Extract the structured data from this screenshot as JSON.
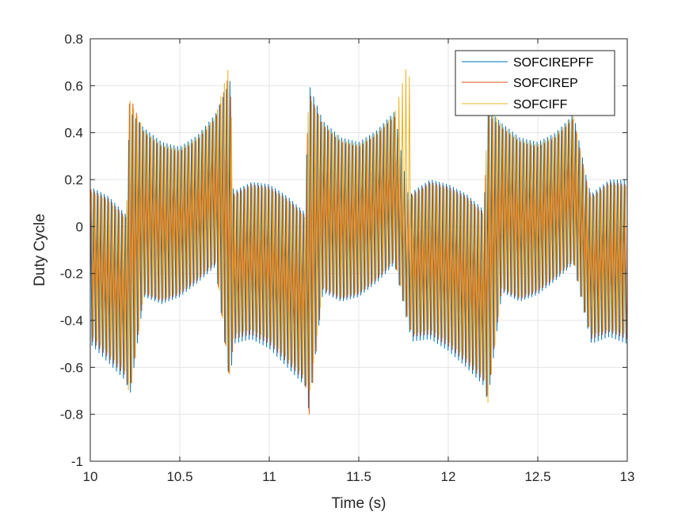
{
  "chart_data": {
    "type": "line",
    "title": "",
    "xlabel": "Time (s)",
    "ylabel": "Duty Cycle",
    "xlim": [
      10,
      13
    ],
    "ylim": [
      -1,
      0.8
    ],
    "xticks": [
      10,
      10.5,
      11,
      11.5,
      12,
      12.5,
      13
    ],
    "xtick_labels": [
      "10",
      "10.5",
      "11",
      "11.5",
      "12",
      "12.5",
      "13"
    ],
    "yticks": [
      -1,
      -0.8,
      -0.6,
      -0.4,
      -0.2,
      0,
      0.2,
      0.4,
      0.6,
      0.8
    ],
    "ytick_labels": [
      "-1",
      "-0.8",
      "-0.6",
      "-0.4",
      "-0.2",
      "0",
      "0.2",
      "0.4",
      "0.6",
      "0.8"
    ],
    "grid": true,
    "legend_position": "top-right",
    "series": [
      {
        "name": "SOFCIREPFF",
        "color": "#0072BD",
        "x": [
          10.0,
          10.1,
          10.2,
          10.22,
          10.3,
          10.4,
          10.5,
          10.6,
          10.7,
          10.78,
          10.8,
          10.9,
          11.0,
          11.1,
          11.2,
          11.22,
          11.3,
          11.4,
          11.5,
          11.6,
          11.7,
          11.78,
          11.8,
          11.9,
          12.0,
          12.1,
          12.2,
          12.22,
          12.3,
          12.4,
          12.5,
          12.6,
          12.7,
          12.78,
          12.8,
          12.9,
          13.0
        ],
        "y_upper": [
          0.17,
          0.13,
          0.05,
          0.49,
          0.42,
          0.36,
          0.34,
          0.39,
          0.48,
          0.62,
          0.15,
          0.19,
          0.18,
          0.13,
          0.06,
          0.61,
          0.45,
          0.38,
          0.36,
          0.41,
          0.49,
          0.12,
          0.15,
          0.2,
          0.18,
          0.14,
          0.07,
          0.5,
          0.44,
          0.38,
          0.36,
          0.4,
          0.48,
          0.18,
          0.14,
          0.2,
          0.2
        ],
        "y_lower": [
          -0.5,
          -0.58,
          -0.66,
          -0.73,
          -0.3,
          -0.33,
          -0.3,
          -0.24,
          -0.17,
          -0.68,
          -0.5,
          -0.48,
          -0.52,
          -0.6,
          -0.68,
          -0.78,
          -0.28,
          -0.32,
          -0.3,
          -0.24,
          -0.16,
          -0.44,
          -0.49,
          -0.48,
          -0.53,
          -0.6,
          -0.68,
          -0.75,
          -0.28,
          -0.32,
          -0.29,
          -0.23,
          -0.16,
          -0.44,
          -0.5,
          -0.47,
          -0.5
        ]
      },
      {
        "name": "SOFCIREP",
        "color": "#D95319",
        "x": [
          10.0,
          10.1,
          10.2,
          10.22,
          10.3,
          10.4,
          10.5,
          10.6,
          10.7,
          10.78,
          10.8,
          10.9,
          11.0,
          11.1,
          11.2,
          11.22,
          11.3,
          11.4,
          11.5,
          11.6,
          11.7,
          11.78,
          11.8,
          11.9,
          12.0,
          12.1,
          12.2,
          12.22,
          12.3,
          12.4,
          12.5,
          12.6,
          12.7,
          12.78,
          12.8,
          12.9,
          13.0
        ],
        "y_upper": [
          0.16,
          0.12,
          0.04,
          0.56,
          0.4,
          0.34,
          0.32,
          0.37,
          0.46,
          0.66,
          0.14,
          0.18,
          0.17,
          0.12,
          0.05,
          0.58,
          0.43,
          0.36,
          0.34,
          0.39,
          0.47,
          0.11,
          0.14,
          0.19,
          0.17,
          0.13,
          0.06,
          0.48,
          0.42,
          0.36,
          0.34,
          0.38,
          0.46,
          0.17,
          0.13,
          0.19,
          0.18
        ],
        "y_lower": [
          -0.48,
          -0.56,
          -0.64,
          -0.71,
          -0.29,
          -0.32,
          -0.29,
          -0.23,
          -0.16,
          -0.66,
          -0.48,
          -0.46,
          -0.5,
          -0.58,
          -0.66,
          -0.82,
          -0.27,
          -0.31,
          -0.29,
          -0.23,
          -0.15,
          -0.42,
          -0.47,
          -0.46,
          -0.51,
          -0.58,
          -0.66,
          -0.73,
          -0.27,
          -0.31,
          -0.28,
          -0.22,
          -0.15,
          -0.42,
          -0.48,
          -0.45,
          -0.48
        ]
      },
      {
        "name": "SOFCIFF",
        "color": "#EDB120",
        "x": [
          10.0,
          10.1,
          10.2,
          10.22,
          10.3,
          10.4,
          10.5,
          10.6,
          10.7,
          10.78,
          10.8,
          10.9,
          11.0,
          11.1,
          11.2,
          11.22,
          11.3,
          11.4,
          11.5,
          11.6,
          11.7,
          11.78,
          11.8,
          11.9,
          12.0,
          12.1,
          12.2,
          12.22,
          12.3,
          12.4,
          12.5,
          12.6,
          12.7,
          12.78,
          12.8,
          12.9,
          13.0
        ],
        "y_upper": [
          0.15,
          0.11,
          0.03,
          0.54,
          0.41,
          0.35,
          0.33,
          0.38,
          0.47,
          0.7,
          0.13,
          0.17,
          0.16,
          0.11,
          0.04,
          0.56,
          0.44,
          0.37,
          0.35,
          0.4,
          0.48,
          0.72,
          0.13,
          0.18,
          0.16,
          0.12,
          0.05,
          0.52,
          0.43,
          0.37,
          0.35,
          0.39,
          0.47,
          0.16,
          0.12,
          0.18,
          0.17
        ],
        "y_lower": [
          -0.46,
          -0.54,
          -0.62,
          -0.74,
          -0.28,
          -0.31,
          -0.28,
          -0.22,
          -0.15,
          -0.64,
          -0.46,
          -0.44,
          -0.48,
          -0.56,
          -0.64,
          -0.74,
          -0.26,
          -0.3,
          -0.28,
          -0.22,
          -0.14,
          -0.41,
          -0.46,
          -0.44,
          -0.49,
          -0.56,
          -0.64,
          -0.76,
          -0.26,
          -0.3,
          -0.27,
          -0.21,
          -0.14,
          -0.41,
          -0.46,
          -0.44,
          -0.46
        ]
      }
    ]
  }
}
